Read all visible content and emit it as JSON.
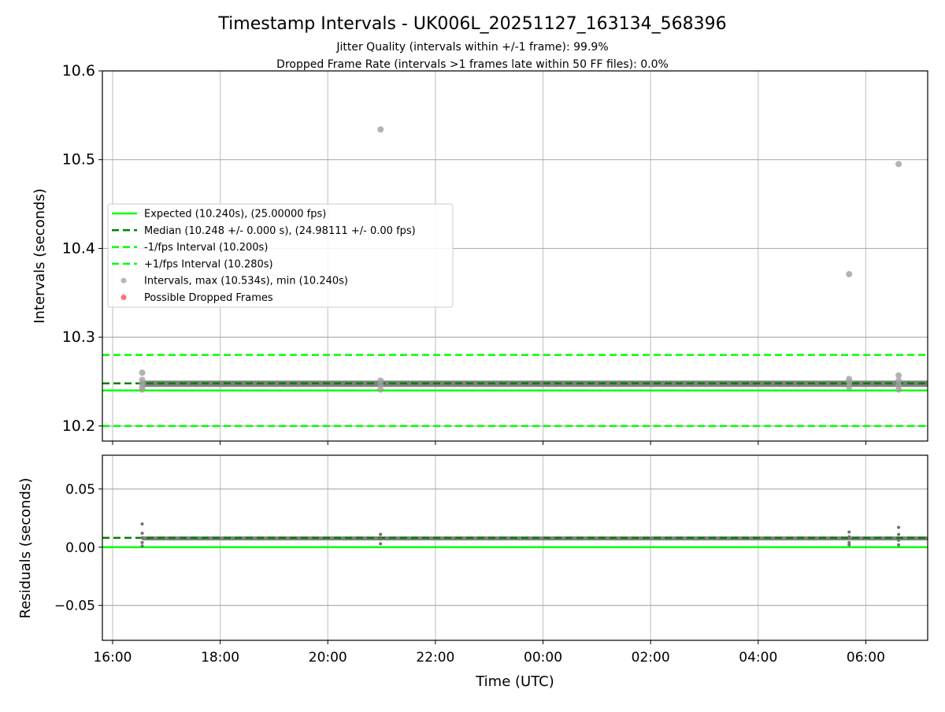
{
  "chart_data": [
    {
      "type": "scatter",
      "title": "Timestamp Intervals - UK006L_20251127_163134_568396",
      "subtitle_lines": [
        "Jitter Quality (intervals within +/-1 frame): 99.9%",
        "Dropped Frame Rate (intervals >1 frames late within 50 FF files): 0.0%"
      ],
      "ylabel": "Intervals (seconds)",
      "ylim": [
        10.183,
        10.6
      ],
      "yticks": [
        10.2,
        10.3,
        10.4,
        10.5,
        10.6
      ],
      "ytick_labels": [
        "10.2",
        "10.3",
        "10.4",
        "10.5",
        "10.6"
      ],
      "xlim_hours": [
        15.81,
        31.15
      ],
      "grid": true,
      "legend_position": "center-left",
      "reference_lines": [
        {
          "name": "Expected (10.240s), (25.00000 fps)",
          "value": 10.24,
          "color": "#00ff00",
          "style": "solid"
        },
        {
          "name": "Median (10.248 +/- 0.000 s), (24.98111 +/- 0.00 fps)",
          "value": 10.248,
          "color": "#008000",
          "style": "dashed"
        },
        {
          "name": "-1/fps Interval (10.200s)",
          "value": 10.2,
          "color": "#00ff00",
          "style": "dashed"
        },
        {
          "name": "+1/fps Interval (10.280s)",
          "value": 10.28,
          "color": "#00ff00",
          "style": "dashed"
        }
      ],
      "series": [
        {
          "name": "Intervals, max (10.534s), min (10.240s)",
          "color": "#a0a0a0",
          "band": {
            "x_start": 16.55,
            "x_end": 31.15,
            "value": 10.2475
          },
          "points": [
            [
              16.55,
              10.26
            ],
            [
              16.55,
              10.252
            ],
            [
              16.55,
              10.248
            ],
            [
              16.55,
              10.244
            ],
            [
              16.55,
              10.241
            ],
            [
              20.98,
              10.534
            ],
            [
              20.98,
              10.251
            ],
            [
              20.98,
              10.247
            ],
            [
              20.98,
              10.241
            ],
            [
              29.69,
              10.371
            ],
            [
              29.69,
              10.253
            ],
            [
              29.69,
              10.249
            ],
            [
              29.69,
              10.244
            ],
            [
              30.61,
              10.495
            ],
            [
              30.61,
              10.257
            ],
            [
              30.61,
              10.251
            ],
            [
              30.61,
              10.246
            ],
            [
              30.61,
              10.241
            ]
          ]
        },
        {
          "name": "Possible Dropped Frames",
          "color": "#ff4040",
          "points": []
        }
      ]
    },
    {
      "type": "scatter",
      "ylabel": "Residuals (seconds)",
      "xlabel": "Time (UTC)",
      "ylim": [
        -0.08,
        0.079
      ],
      "yticks": [
        -0.05,
        0.0,
        0.05
      ],
      "ytick_labels": [
        "−0.05",
        "0.00",
        "0.05"
      ],
      "xticks_hours": [
        16,
        18,
        20,
        22,
        24,
        26,
        28,
        30
      ],
      "xtick_labels": [
        "16:00",
        "18:00",
        "20:00",
        "22:00",
        "00:00",
        "02:00",
        "04:00",
        "06:00"
      ],
      "reference_lines": [
        {
          "value": 0.0,
          "color": "#00ff00",
          "style": "solid"
        },
        {
          "value": 0.008,
          "color": "#008000",
          "style": "dashed"
        }
      ],
      "band": {
        "x_start": 16.55,
        "x_end": 31.15,
        "value": 0.0075
      },
      "points": [
        [
          16.55,
          0.02
        ],
        [
          16.55,
          0.012
        ],
        [
          16.55,
          0.008
        ],
        [
          16.55,
          0.004
        ],
        [
          16.55,
          0.001
        ],
        [
          20.98,
          0.011
        ],
        [
          20.98,
          0.007
        ],
        [
          20.98,
          0.003
        ],
        [
          29.69,
          0.013
        ],
        [
          29.69,
          0.009
        ],
        [
          29.69,
          0.004
        ],
        [
          29.69,
          0.002
        ],
        [
          30.61,
          0.017
        ],
        [
          30.61,
          0.011
        ],
        [
          30.61,
          0.006
        ],
        [
          30.61,
          0.002
        ]
      ]
    }
  ]
}
